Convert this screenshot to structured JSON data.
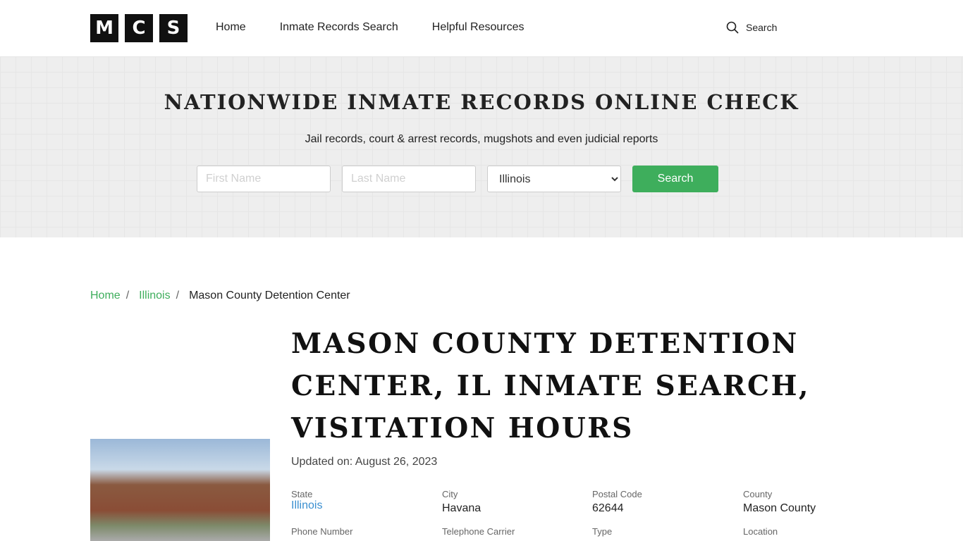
{
  "header": {
    "logo": [
      "M",
      "C",
      "S"
    ],
    "nav": [
      "Home",
      "Inmate Records Search",
      "Helpful Resources"
    ],
    "search_label": "Search"
  },
  "hero": {
    "title": "NATIONWIDE INMATE RECORDS ONLINE CHECK",
    "subtitle": "Jail records, court & arrest records, mugshots and even judicial reports",
    "first_name_placeholder": "First Name",
    "last_name_placeholder": "Last Name",
    "state_selected": "Illinois",
    "search_button": "Search"
  },
  "breadcrumb": [
    "Home",
    "Illinois",
    "Mason County Detention Center"
  ],
  "page": {
    "title": "MASON COUNTY DETENTION CENTER, IL INMATE SEARCH, VISITATION HOURS",
    "updated": "Updated on: August 26, 2023"
  },
  "facts": [
    {
      "label": "State",
      "value": "Illinois"
    },
    {
      "label": "City",
      "value": "Havana"
    },
    {
      "label": "Postal Code",
      "value": "62644"
    },
    {
      "label": "County",
      "value": "Mason County"
    },
    {
      "label": "Phone Number",
      "value": ""
    },
    {
      "label": "Telephone Carrier",
      "value": ""
    },
    {
      "label": "Type",
      "value": ""
    },
    {
      "label": "Location",
      "value": ""
    }
  ],
  "colors": {
    "accent": "#3eae5c",
    "link": "#3a8fd0"
  }
}
